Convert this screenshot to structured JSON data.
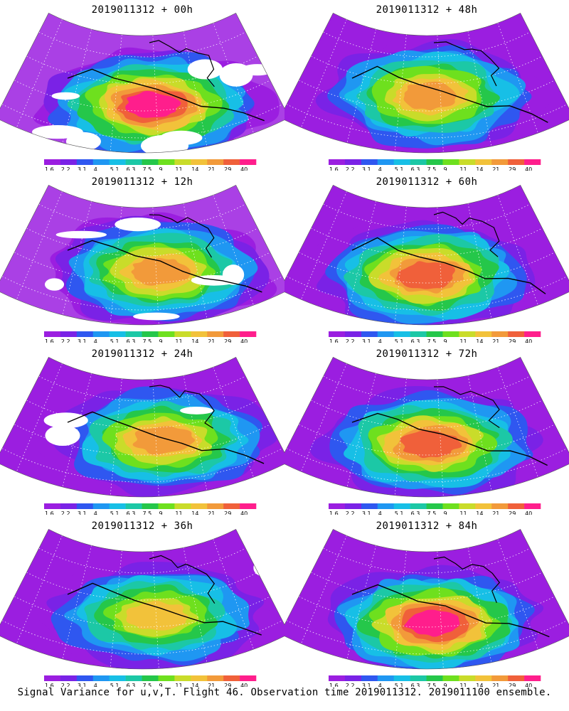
{
  "figure": {
    "caption": "Signal Variance for u,v,T. Flight 46. Observation time 2019011312. 2019011100 ensemble."
  },
  "colorbar": {
    "labels": [
      "1.6",
      "2.2",
      "3.1",
      "4",
      "5.1",
      "6.3",
      "7.5",
      "9",
      "11",
      "14",
      "21",
      "29",
      "40"
    ],
    "colors": [
      "#9b1ee0",
      "#7a22e6",
      "#2f57f0",
      "#1f97f2",
      "#17bfe6",
      "#1cc8a6",
      "#25c74a",
      "#6ee01e",
      "#c9dc2a",
      "#f2c23a",
      "#f29a3a",
      "#f0603a",
      "#ff1e8c"
    ]
  },
  "chart_data": [
    {
      "type": "heatmap",
      "title": "2019011312 + 00h",
      "lead_hours": 0,
      "max_level": 40,
      "colorbar_ticks": [
        1.6,
        2.2,
        3.1,
        4,
        5.1,
        6.3,
        7.5,
        9,
        11,
        14,
        21,
        29,
        40
      ]
    },
    {
      "type": "heatmap",
      "title": "2019011312 + 12h",
      "lead_hours": 12,
      "max_level": 21,
      "colorbar_ticks": [
        1.6,
        2.2,
        3.1,
        4,
        5.1,
        6.3,
        7.5,
        9,
        11,
        14,
        21,
        29,
        40
      ]
    },
    {
      "type": "heatmap",
      "title": "2019011312 + 24h",
      "lead_hours": 24,
      "max_level": 21,
      "colorbar_ticks": [
        1.6,
        2.2,
        3.1,
        4,
        5.1,
        6.3,
        7.5,
        9,
        11,
        14,
        21,
        29,
        40
      ]
    },
    {
      "type": "heatmap",
      "title": "2019011312 + 36h",
      "lead_hours": 36,
      "max_level": 14,
      "colorbar_ticks": [
        1.6,
        2.2,
        3.1,
        4,
        5.1,
        6.3,
        7.5,
        9,
        11,
        14,
        21,
        29,
        40
      ]
    },
    {
      "type": "heatmap",
      "title": "2019011312 + 48h",
      "lead_hours": 48,
      "max_level": 21,
      "colorbar_ticks": [
        1.6,
        2.2,
        3.1,
        4,
        5.1,
        6.3,
        7.5,
        9,
        11,
        14,
        21,
        29,
        40
      ]
    },
    {
      "type": "heatmap",
      "title": "2019011312 + 60h",
      "lead_hours": 60,
      "max_level": 29,
      "colorbar_ticks": [
        1.6,
        2.2,
        3.1,
        4,
        5.1,
        6.3,
        7.5,
        9,
        11,
        14,
        21,
        29,
        40
      ]
    },
    {
      "type": "heatmap",
      "title": "2019011312 + 72h",
      "lead_hours": 72,
      "max_level": 29,
      "colorbar_ticks": [
        1.6,
        2.2,
        3.1,
        4,
        5.1,
        6.3,
        7.5,
        9,
        11,
        14,
        21,
        29,
        40
      ]
    },
    {
      "type": "heatmap",
      "title": "2019011312 + 84h",
      "lead_hours": 84,
      "max_level": 40,
      "colorbar_ticks": [
        1.6,
        2.2,
        3.1,
        4,
        5.1,
        6.3,
        7.5,
        9,
        11,
        14,
        21,
        29,
        40
      ]
    }
  ]
}
